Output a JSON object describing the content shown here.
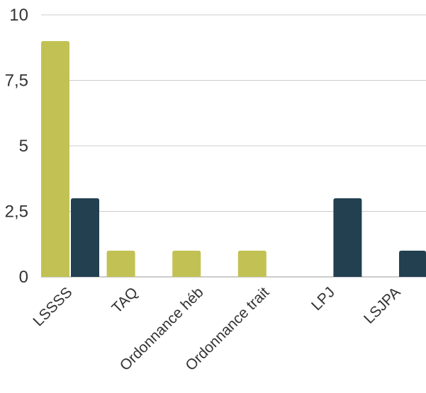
{
  "chart_data": {
    "type": "bar",
    "title": "",
    "xlabel": "",
    "ylabel": "",
    "categories": [
      "LSSSS",
      "TAQ",
      "Ordonnance héb",
      "Ordonnance trait",
      "LPJ",
      "LSJPA"
    ],
    "series": [
      {
        "color": "#c2c254",
        "values": [
          9,
          1,
          1,
          1,
          0,
          0
        ]
      },
      {
        "color": "#22404f",
        "values": [
          3,
          0,
          0,
          0,
          3,
          1
        ]
      }
    ],
    "ylim": [
      0,
      10
    ],
    "yticks": [
      0,
      2.5,
      5,
      7.5,
      10
    ],
    "ytick_labels": [
      "0",
      "2,5",
      "5",
      "7,5",
      "10"
    ],
    "grid": true,
    "legend": "none"
  }
}
